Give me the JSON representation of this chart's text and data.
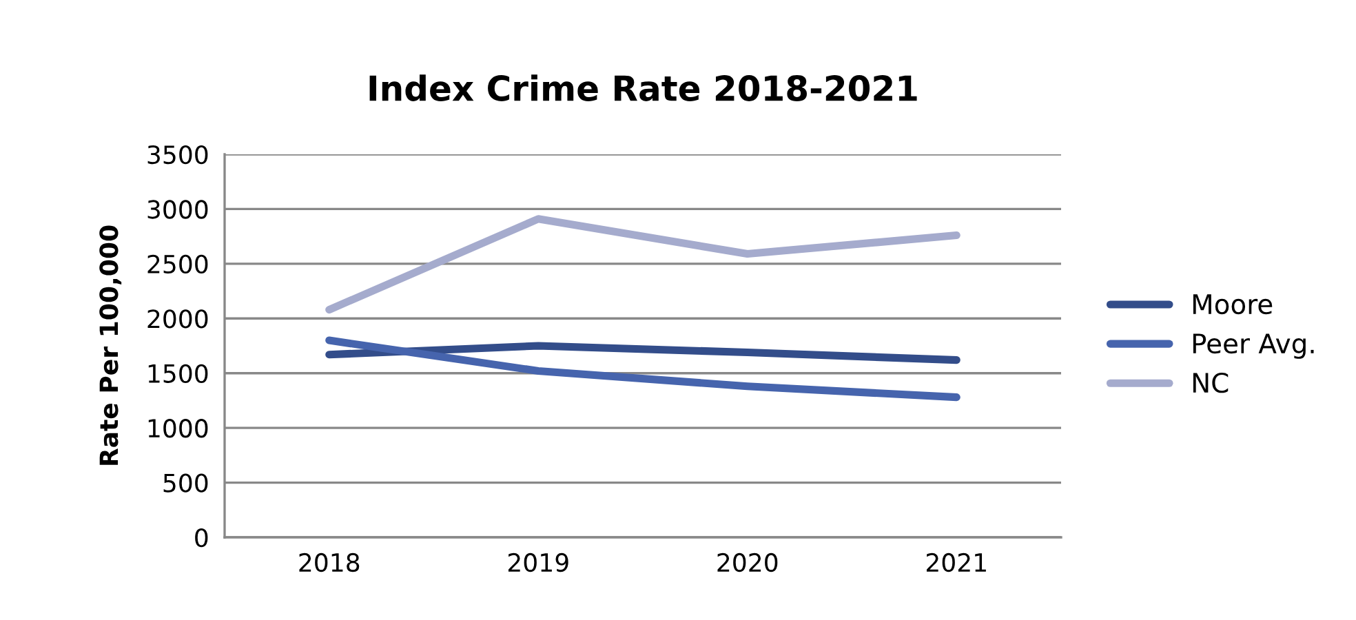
{
  "chart_data": {
    "type": "line",
    "title": "Index Crime Rate 2018-2021",
    "ylabel": "Rate Per 100,000",
    "categories": [
      "2018",
      "2019",
      "2020",
      "2021"
    ],
    "series": [
      {
        "name": "Moore",
        "color": "#334d8a",
        "values": [
          1670,
          1750,
          1690,
          1620
        ]
      },
      {
        "name": "Peer Avg.",
        "color": "#4664ad",
        "values": [
          1800,
          1520,
          1380,
          1280
        ]
      },
      {
        "name": "NC",
        "color": "#a5abcd",
        "values": [
          2080,
          2910,
          2590,
          2760
        ]
      }
    ],
    "ylim": [
      0,
      3500
    ],
    "yticks": [
      0,
      500,
      1000,
      1500,
      2000,
      2500,
      3000,
      3500
    ],
    "grid": "y",
    "legend": "right",
    "marker": "none",
    "line_style": "solid"
  }
}
